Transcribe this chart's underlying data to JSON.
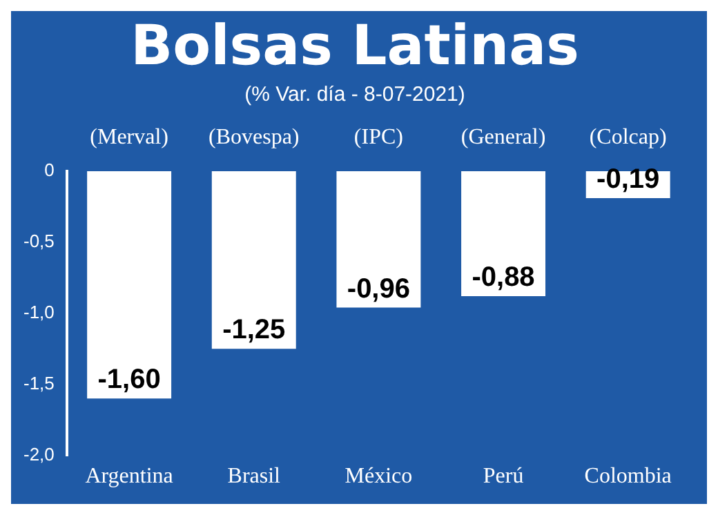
{
  "chart_data": {
    "type": "bar",
    "title": "Bolsas Latinas",
    "subtitle": "(% Var. día - 8-07-2021)",
    "categories": [
      "Argentina",
      "Brasil",
      "México",
      "Perú",
      "Colombia"
    ],
    "series": [
      {
        "color": "#ffffff",
        "values": [
          -1.6,
          -1.25,
          -0.96,
          -0.88,
          -0.19
        ],
        "value_labels": [
          "-1,60",
          "-1,25",
          "-0,96",
          "-0,88",
          "-0,19"
        ]
      }
    ],
    "ylim": [
      -2,
      0
    ],
    "yticks": [
      0,
      {
        "value": -0.5,
        "label": "-0,5"
      },
      {
        "value": -1,
        "label": "-1,0"
      },
      {
        "value": -1.5,
        "label": "-1,5"
      },
      {
        "value": -2,
        "label": "-2,0"
      }
    ],
    "annotations": [
      "(Merval)",
      "(Bovespa)",
      "(IPC)",
      "(General)",
      "(Colcap)"
    ],
    "grid": false,
    "legend": false
  }
}
